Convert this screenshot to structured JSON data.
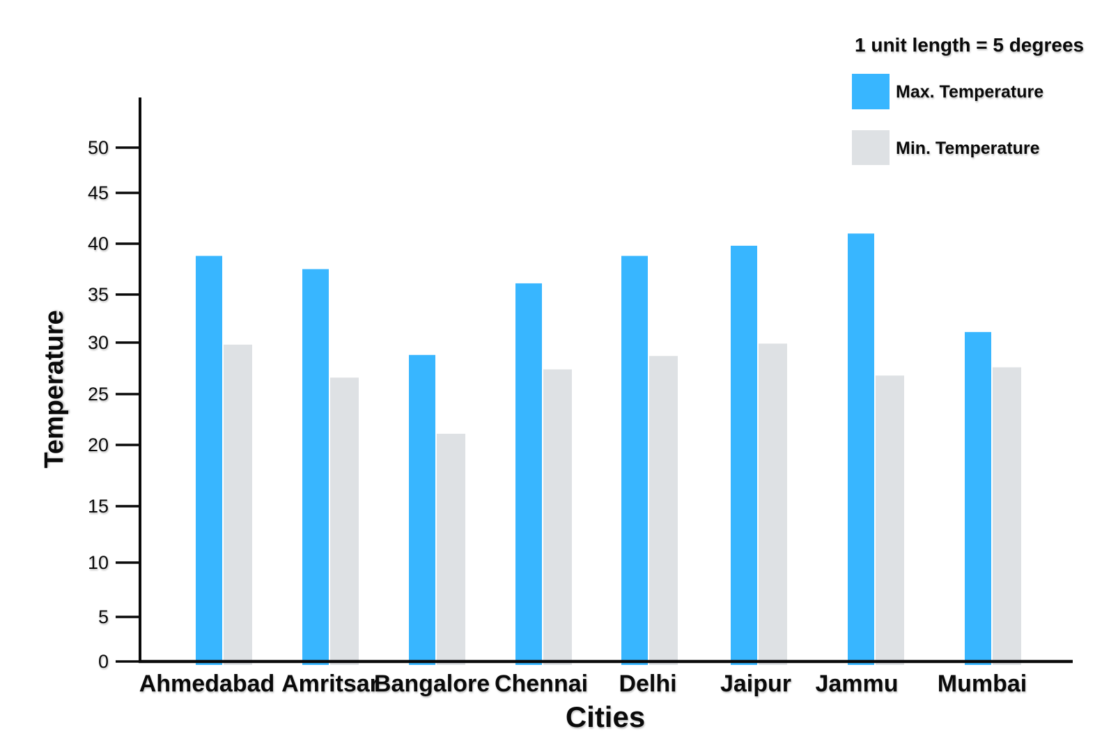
{
  "chart_data": {
    "type": "bar",
    "title": "",
    "unit_note": "1 unit length = 5  degrees",
    "xlabel": "Cities",
    "ylabel": "Temperature",
    "categories": [
      "Ahmedabad",
      "Amritsar",
      "Bangalore",
      "Chennai",
      "Delhi",
      "Jaipur",
      "Jammu",
      "Mumbai"
    ],
    "series": [
      {
        "name": "Max. Temperature",
        "color": "#38B6FF",
        "values": [
          38.8,
          37.5,
          28.8,
          36.1,
          38.8,
          39.8,
          41.0,
          31.1
        ]
      },
      {
        "name": "Min. Temperature",
        "color": "#DEE1E4",
        "values": [
          29.8,
          26.6,
          21.1,
          27.4,
          28.7,
          29.9,
          26.8,
          27.6
        ]
      }
    ],
    "y_ticks": [
      0,
      5,
      10,
      15,
      20,
      25,
      30,
      35,
      40,
      45,
      50
    ],
    "ylim": [
      0,
      55
    ],
    "grid": false,
    "legend_position": "top-right",
    "axis_color": "#0a0a0a",
    "background": "#FFFFFF"
  }
}
